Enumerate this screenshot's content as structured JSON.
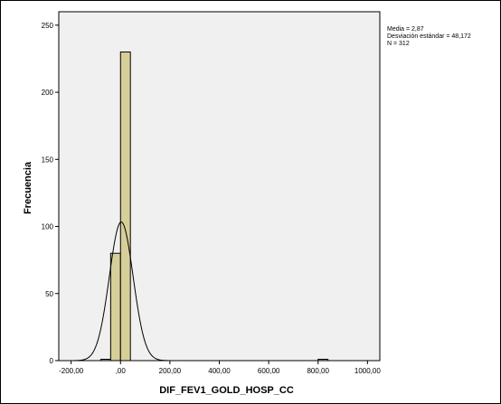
{
  "chart_data": {
    "type": "bar",
    "title": "",
    "xlabel": "DIF_FEV1_GOLD_HOSP_CC",
    "ylabel": "Frecuencia",
    "xlim": [
      -250,
      1050
    ],
    "ylim": [
      0,
      260
    ],
    "x_ticks": [
      -200,
      0,
      200,
      400,
      600,
      800,
      1000
    ],
    "x_tick_labels": [
      "-200,00",
      ",00",
      "200,00",
      "400,00",
      "600,00",
      "800,00",
      "1000,00"
    ],
    "y_ticks": [
      0,
      50,
      100,
      150,
      200,
      250
    ],
    "y_tick_labels": [
      "0",
      "50",
      "100",
      "150",
      "200",
      "250"
    ],
    "grid": false,
    "bin_width": 40,
    "bins": [
      {
        "start": -80,
        "end": -40,
        "count": 1
      },
      {
        "start": -40,
        "end": 0,
        "count": 80
      },
      {
        "start": 0,
        "end": 40,
        "count": 230
      },
      {
        "start": 800,
        "end": 840,
        "count": 1
      }
    ],
    "normal_curve": {
      "mean": 2.87,
      "sd": 48.172,
      "n": 312
    },
    "colors": {
      "bar_fill": "#d6cf99",
      "bar_stroke": "#000000",
      "plot_bg": "#f0f0f0",
      "curve": "#000000"
    },
    "legend_placement": "top-right"
  },
  "stats_text": {
    "mean": "Media = 2,87",
    "sd": "Desviación estándar = 48,172",
    "n": "N = 312"
  }
}
